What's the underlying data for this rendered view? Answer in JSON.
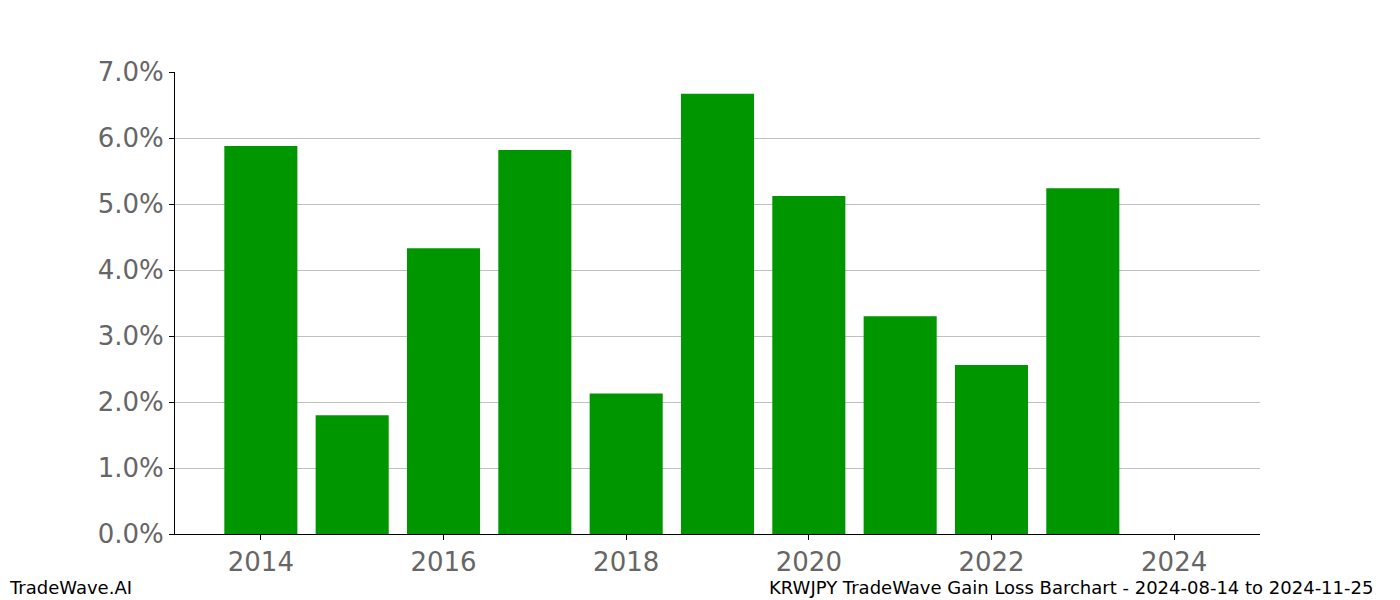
{
  "chart_data": {
    "type": "bar",
    "title": "KRWJPY TradeWave Gain Loss Barchart - 2024-08-14 to 2024-11-25",
    "annotations": [
      "TradeWave.AI"
    ],
    "x": [
      2014,
      2015,
      2016,
      2017,
      2018,
      2019,
      2020,
      2021,
      2022,
      2023
    ],
    "values": [
      5.88,
      1.8,
      4.33,
      5.82,
      2.13,
      6.67,
      5.12,
      3.3,
      2.56,
      5.24
    ],
    "color": "#009600",
    "xlim": [
      2013.06,
      2024.94
    ],
    "xticks": [
      2014,
      2016,
      2018,
      2020,
      2022,
      2024
    ],
    "ylim": [
      0,
      7.0
    ],
    "yticks": [
      {
        "value": 0,
        "label": "0.0%"
      },
      {
        "value": 1,
        "label": "1.0%"
      },
      {
        "value": 2,
        "label": "2.0%"
      },
      {
        "value": 3,
        "label": "3.0%"
      },
      {
        "value": 4,
        "label": "4.0%"
      },
      {
        "value": 5,
        "label": "5.0%"
      },
      {
        "value": 6,
        "label": "6.0%"
      },
      {
        "value": 7,
        "label": "7.0%"
      }
    ],
    "grid": true
  }
}
